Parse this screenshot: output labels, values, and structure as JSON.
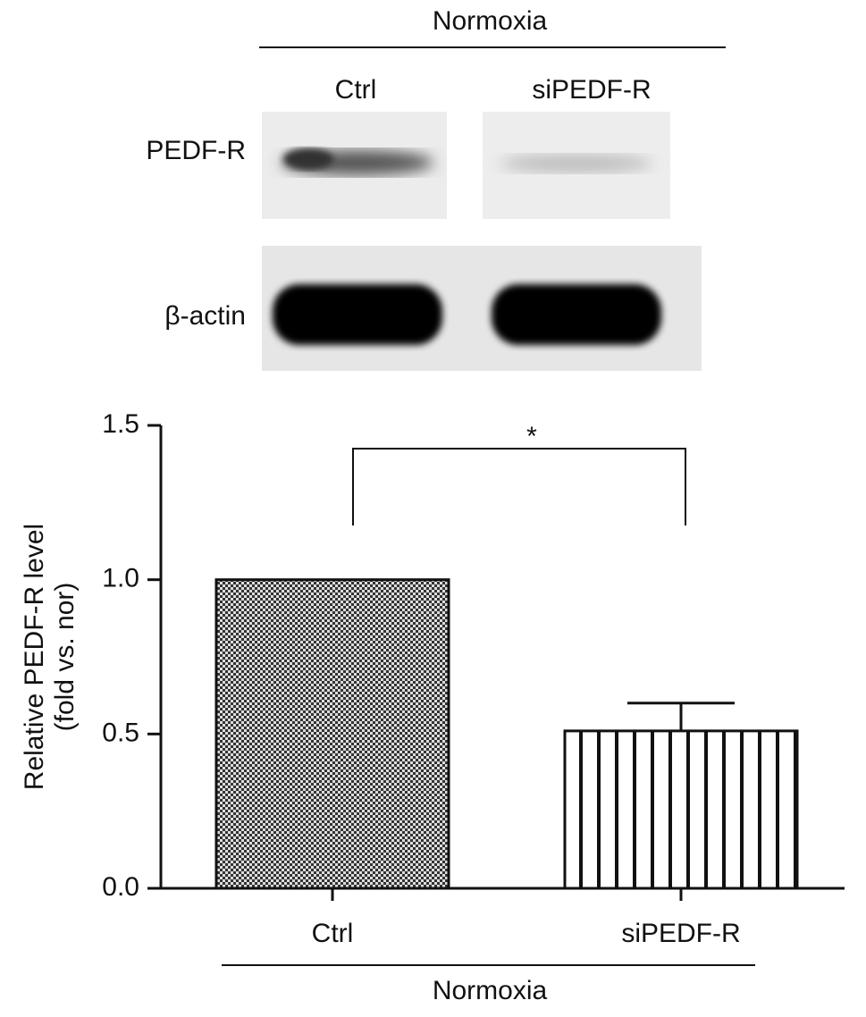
{
  "blot": {
    "group_label": "Normoxia",
    "lanes": [
      "Ctrl",
      "siPEDF-R"
    ],
    "rows": [
      "PEDF-R",
      "β-actin"
    ]
  },
  "chart_data": {
    "type": "bar",
    "categories": [
      "Ctrl",
      "siPEDF-R"
    ],
    "values": [
      1.0,
      0.51
    ],
    "errors": [
      null,
      0.09
    ],
    "ylabel": [
      "Relative PEDF-R level",
      "(fold vs. nor)"
    ],
    "ylim": [
      0,
      1.5
    ],
    "yticks": [
      {
        "value": 0,
        "label": "0.0"
      },
      {
        "value": 0.5,
        "label": "0.5"
      },
      {
        "value": 1,
        "label": "1.0"
      },
      {
        "value": 1.5,
        "label": "1.5"
      }
    ],
    "group_label": "Normoxia",
    "annotation": "*"
  }
}
